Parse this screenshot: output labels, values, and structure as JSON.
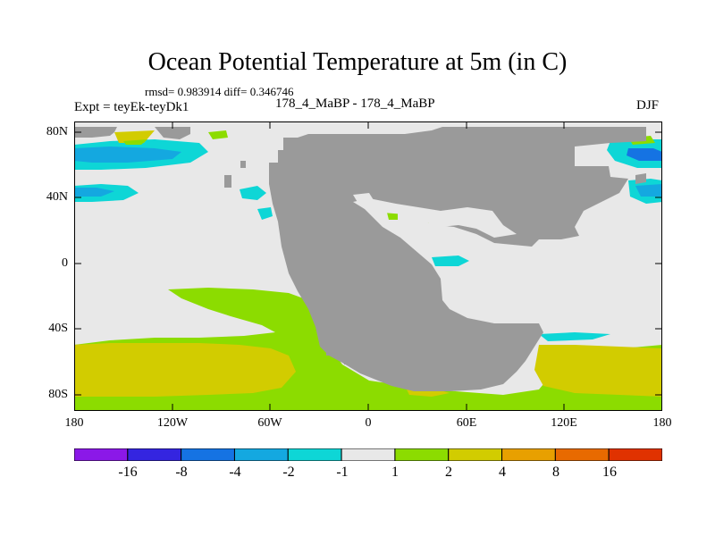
{
  "header": {
    "title": "Ocean Potential Temperature at 5m (in C)",
    "stats": "rmsd= 0.983914 diff= 0.346746",
    "experiment": "Expt = teyEk-teyDk1",
    "cases": "178_4_MaBP - 178_4_MaBP",
    "season": "DJF"
  },
  "axes": {
    "lat_ticks": [
      "80N",
      "40N",
      "0",
      "40S",
      "80S"
    ],
    "lon_ticks": [
      "180",
      "120W",
      "60W",
      "0",
      "60E",
      "120E",
      "180"
    ]
  },
  "colorbar": {
    "labels": [
      "-16",
      "-8",
      "-4",
      "-2",
      "-1",
      "1",
      "2",
      "4",
      "8",
      "16"
    ],
    "colors": [
      "#8b18e8",
      "#3425e0",
      "#1573e3",
      "#14a8e0",
      "#0ed6d6",
      "#e8e8e8",
      "#8cdc00",
      "#d2cc00",
      "#e8a000",
      "#e86a00",
      "#e03200"
    ]
  },
  "colors": {
    "land": "#9a9a9a",
    "neutral": "#e8e8e8"
  }
}
